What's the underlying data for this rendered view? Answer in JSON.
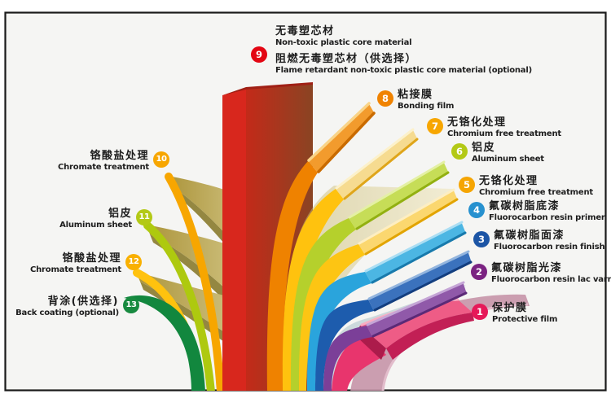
{
  "diagram_title": "aluminum-composite-panel-layer-structure",
  "core_top_label": {
    "zh": "无毒塑芯材",
    "en": "Non-toxic plastic core material"
  },
  "callouts": [
    {
      "num": "9",
      "zh": "阻燃无毒塑芯材（供选择）",
      "en": "Flame retardant non-toxic plastic core material (optional)",
      "color": "#e30613",
      "side": "top"
    },
    {
      "num": "8",
      "zh": "粘接膜",
      "en": "Bonding film",
      "color": "#f08300",
      "side": "right"
    },
    {
      "num": "7",
      "zh": "无铬化处理",
      "en": "Chromium free treatment",
      "color": "#f7a600",
      "side": "right"
    },
    {
      "num": "6",
      "zh": "铝皮",
      "en": "Aluminum sheet",
      "color": "#b3c916",
      "side": "right"
    },
    {
      "num": "5",
      "zh": "无铬化处理",
      "en": "Chromium free treatment",
      "color": "#f5a503",
      "side": "right"
    },
    {
      "num": "4",
      "zh": "氟碳树脂底漆",
      "en": "Fluorocarbon resin primer",
      "color": "#2791cf",
      "side": "right"
    },
    {
      "num": "3",
      "zh": "氟碳树脂面漆",
      "en": "Fluorocarbon resin finish",
      "color": "#1c55a5",
      "side": "right"
    },
    {
      "num": "2",
      "zh": "氟碳树脂光漆",
      "en": "Fluorocarbon resin lac varnish",
      "color": "#7b2382",
      "side": "right"
    },
    {
      "num": "1",
      "zh": "保护膜",
      "en": "Protective film",
      "color": "#e61959",
      "side": "right"
    },
    {
      "num": "10",
      "zh": "铬酸盐处理",
      "en": "Chromate treatment",
      "color": "#f7a600",
      "side": "left"
    },
    {
      "num": "11",
      "zh": "铝皮",
      "en": "Aluminum sheet",
      "color": "#b3c916",
      "side": "left"
    },
    {
      "num": "12",
      "zh": "铬酸盐处理",
      "en": "Chromate treatment",
      "color": "#f9b000",
      "side": "left"
    },
    {
      "num": "13",
      "zh": "背涂(供选择)",
      "en": "Back coating (optional)",
      "color": "#188a3f",
      "side": "left"
    }
  ],
  "palette": {
    "page_bg": "#ffffff",
    "frame_bg": "#f5f5f3",
    "frame_border": "#1a1a1a",
    "trunk_left": "#d8271d",
    "trunk_front_from": "#c32a19",
    "trunk_front_to": "#8a4423",
    "trunk_top": "#a02015",
    "wing_from": "#aa9236",
    "wing_to": "#d8cd90",
    "wing_edge": "#8a7b2d",
    "stem10": "#f7a600",
    "stem11": "#aec90f",
    "stem12": "#ffc20e",
    "green13": "#12873e",
    "tan_from": "#c3b264",
    "tan_to": "#eee4b4",
    "steel": "#8fb0ba",
    "mauve": "#c795a8",
    "mauve_hl": "#e2bccb",
    "r8_main": "#ef8200",
    "r8_blade": "#f29b2d",
    "r8_hl": "#f9d489",
    "r8_under": "#c96b00",
    "r7_main": "#ffc20e",
    "r7_blade": "#f6db90",
    "r7_hl": "#fcf1cb",
    "r7_under": "#dfa51a",
    "r6_main": "#b5d02c",
    "r6_blade": "#c6dd57",
    "r6_hl": "#e4f0a4",
    "r6_under": "#92b011",
    "r5_main": "#fdc513",
    "r5_blade": "#fbd76f",
    "r5_hl": "#fdeec2",
    "r5_under": "#e2a400",
    "r4_main": "#2aa4dc",
    "r4_blade": "#4cb6e3",
    "r4_hl": "#abdef3",
    "r4_under": "#187aac",
    "r3_main": "#1d5cad",
    "r3_blade": "#3b72bd",
    "r3_hl": "#93b5de",
    "r3_under": "#133e7f",
    "r2_main": "#7b3f98",
    "r2_blade": "#9059a9",
    "r2_hl": "#c5a5d6",
    "r2_under": "#5b2a77",
    "r1_main": "#e8356d",
    "r1_blade": "#ee5c86",
    "r1_front": "#c21f55",
    "r1_front2": "#ac1b4b",
    "r1_hl": "#f8aec3"
  }
}
